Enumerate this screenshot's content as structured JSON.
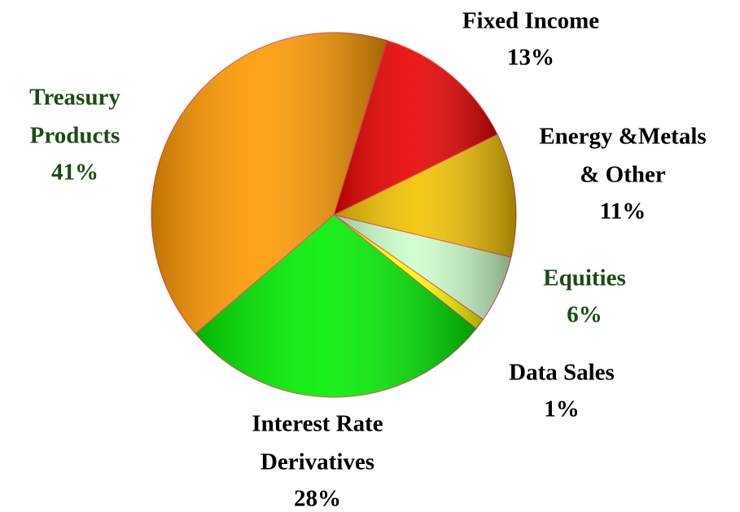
{
  "chart_data": {
    "type": "pie",
    "categories": [
      [
        "Fixed Income"
      ],
      [
        "Energy &Metals",
        "& Other"
      ],
      [
        "Equities"
      ],
      [
        "Data Sales"
      ],
      [
        "Interest Rate",
        "Derivatives"
      ],
      [
        "Treasury",
        "Products"
      ]
    ],
    "values": [
      13,
      11,
      6,
      1,
      28,
      41
    ],
    "value_labels": [
      "13%",
      "11%",
      "6%",
      "1%",
      "28%",
      "41%"
    ],
    "colors": [
      "#e80000",
      "#f2c200",
      "#ccffcc",
      "#ffff00",
      "#00ee00",
      "#ff9900"
    ],
    "label_colors": [
      "#000000",
      "#000000",
      "#1a4d14",
      "#000000",
      "#000000",
      "#1a4d14"
    ]
  }
}
